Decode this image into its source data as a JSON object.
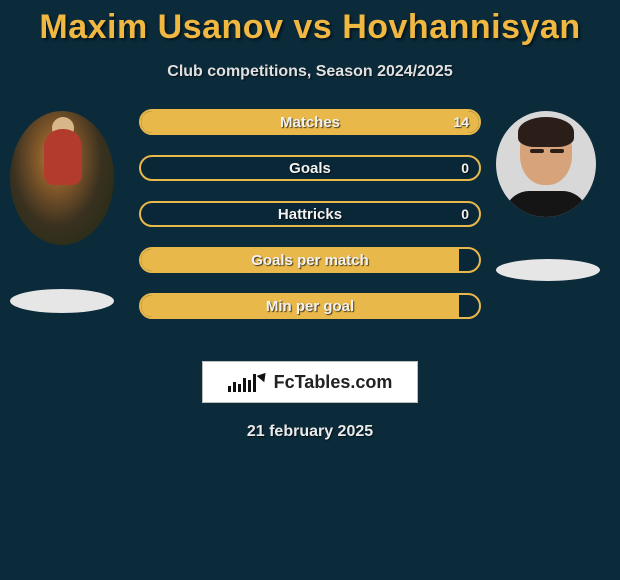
{
  "title": "Maxim Usanov vs Hovhannisyan",
  "subtitle": "Club competitions, Season 2024/2025",
  "date": "21 february 2025",
  "logo_text": "FcTables.com",
  "colors": {
    "title_color": "#f0b840",
    "background": "#0b2a3a",
    "bar_border": "#e9b84a",
    "bar_fill": "#e9b84a",
    "text_light": "#f2f2f2"
  },
  "bars": [
    {
      "label": "Matches",
      "value": "14",
      "fill_pct": 100,
      "show_value": true
    },
    {
      "label": "Goals",
      "value": "0",
      "fill_pct": 0,
      "show_value": true
    },
    {
      "label": "Hattricks",
      "value": "0",
      "fill_pct": 0,
      "show_value": true
    },
    {
      "label": "Goals per match",
      "value": "",
      "fill_pct": 94,
      "show_value": false
    },
    {
      "label": "Min per goal",
      "value": "",
      "fill_pct": 94,
      "show_value": false
    }
  ],
  "logo_bar_heights": [
    6,
    10,
    8,
    14,
    12,
    18
  ]
}
